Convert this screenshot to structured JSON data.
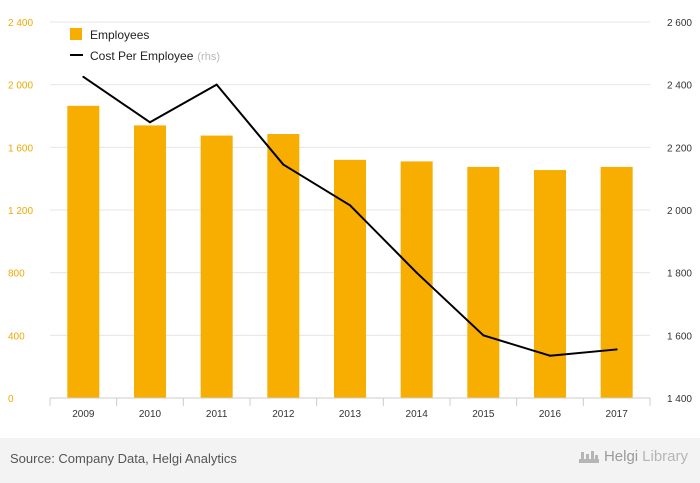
{
  "chart_data": {
    "type": "bar+line",
    "categories": [
      "2009",
      "2010",
      "2011",
      "2012",
      "2013",
      "2014",
      "2015",
      "2016",
      "2017"
    ],
    "series": [
      {
        "name": "Employees",
        "type": "bar",
        "axis": "left",
        "color": "#f7ae00",
        "values": [
          1865,
          1740,
          1675,
          1685,
          1520,
          1510,
          1475,
          1455,
          1475
        ]
      },
      {
        "name": "Cost Per Employee",
        "type": "line",
        "axis": "right",
        "color": "#000000",
        "values": [
          2425,
          2280,
          2400,
          2145,
          2015,
          1800,
          1600,
          1535,
          1555
        ]
      }
    ],
    "legend": {
      "employees": "Employees",
      "cost": "Cost Per Employee",
      "rhs": "(rhs)"
    },
    "y_left": {
      "min": 0,
      "max": 2400,
      "ticks": [
        0,
        400,
        800,
        1200,
        1600,
        2000,
        2400
      ],
      "tick_labels": [
        "0",
        "400",
        "800",
        "1 200",
        "1 600",
        "2 000",
        "2 400"
      ]
    },
    "y_right": {
      "min": 1400,
      "max": 2600,
      "ticks": [
        1400,
        1600,
        1800,
        2000,
        2200,
        2400,
        2600
      ],
      "tick_labels": [
        "1 400",
        "1 600",
        "1 800",
        "2 000",
        "2 200",
        "2 400",
        "2 600"
      ]
    },
    "colors": {
      "bar": "#f7ae00",
      "line": "#000000",
      "left_axis_text": "#f0a800",
      "right_axis_text": "#333333",
      "grid": "#e6e6e6"
    }
  },
  "footer": {
    "source": "Source: Company Data, Helgi Analytics",
    "brand_prefix": "Helgi",
    "brand_suffix": "Library"
  }
}
